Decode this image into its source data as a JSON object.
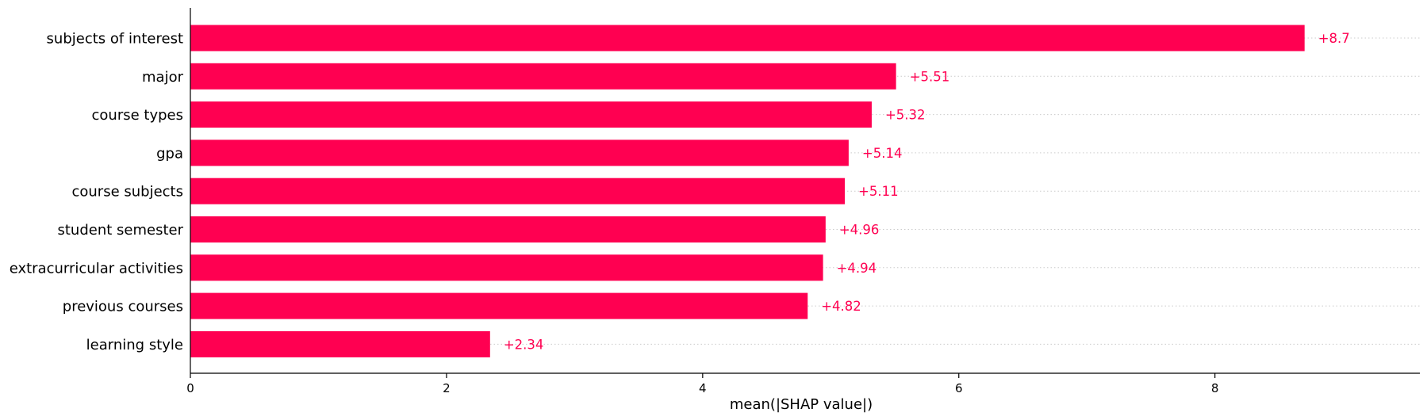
{
  "chart_data": {
    "type": "bar",
    "orientation": "horizontal",
    "categories": [
      "subjects of interest",
      "major",
      "course types",
      "gpa",
      "course subjects",
      "student semester",
      "extracurricular activities",
      "previous courses",
      "learning style"
    ],
    "values": [
      8.7,
      5.51,
      5.32,
      5.14,
      5.11,
      4.96,
      4.94,
      4.82,
      2.34
    ],
    "value_labels": [
      "+8.7",
      "+5.51",
      "+5.32",
      "+5.14",
      "+5.11",
      "+4.96",
      "+4.94",
      "+4.82",
      "+2.34"
    ],
    "xlabel": "mean(|SHAP value|)",
    "ylabel": "",
    "title": "",
    "xlim": [
      0,
      9.6
    ],
    "xticks": [
      0,
      2,
      4,
      6,
      8
    ],
    "xtick_labels": [
      "0",
      "2",
      "4",
      "6",
      "8"
    ],
    "grid": "dotted horizontal row guides",
    "colors": {
      "bar": "#ff0051",
      "value_label": "#ff0051",
      "guide": "#cccccc",
      "axis": "#000000"
    }
  }
}
